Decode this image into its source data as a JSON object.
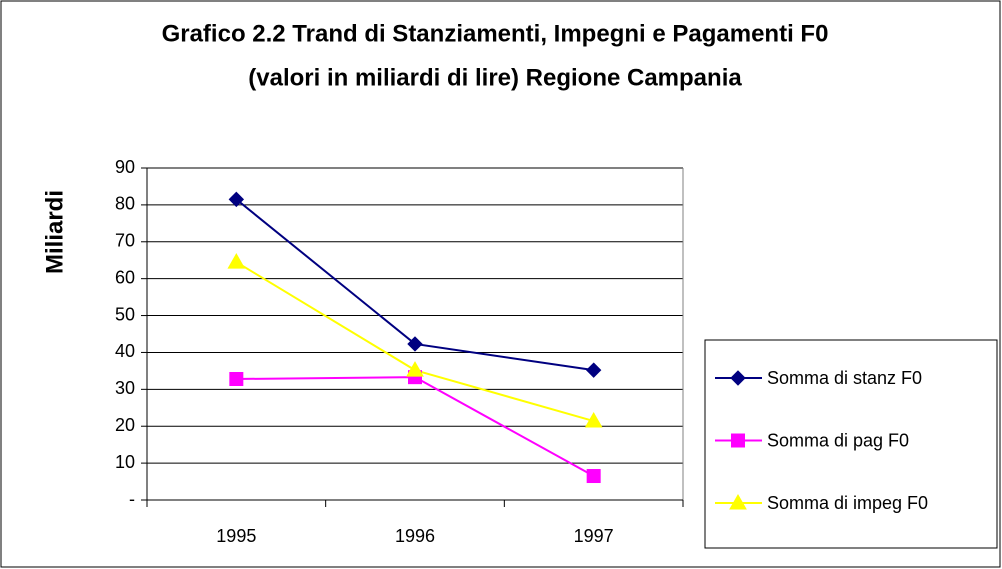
{
  "chart_data": {
    "type": "line",
    "title": "Grafico 2.2 Trand di Stanziamenti, Impegni e Pagamenti F0",
    "subtitle": "(valori in miliardi di lire) Regione Campania",
    "y_label": "Miliardi",
    "categories": [
      "1995",
      "1996",
      "1997"
    ],
    "series": [
      {
        "name": "Somma di stanz F0",
        "color": "#000080",
        "marker": "diamond",
        "values": [
          81.5,
          42.3,
          35.2
        ]
      },
      {
        "name": "Somma di pag F0",
        "color": "#ff00ff",
        "marker": "square",
        "values": [
          32.8,
          33.3,
          6.5
        ]
      },
      {
        "name": "Somma di impeg F0",
        "color": "#ffff00",
        "marker": "triangle",
        "values": [
          64.5,
          35.2,
          21.4
        ]
      }
    ],
    "ylim": [
      0,
      90
    ],
    "yticks": [
      {
        "value": 0,
        "label": "-"
      },
      10,
      20,
      30,
      40,
      50,
      60,
      70,
      80,
      90
    ],
    "grid": true,
    "legend": "right"
  }
}
